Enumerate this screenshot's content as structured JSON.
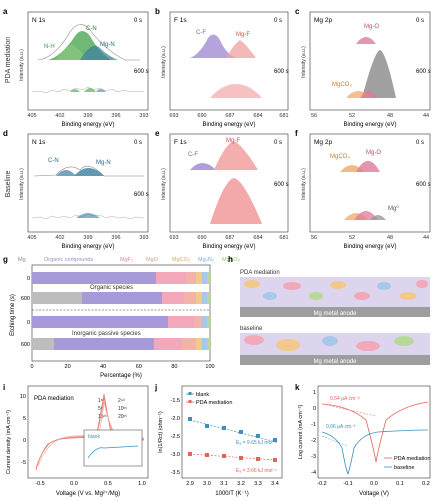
{
  "panel_letters": [
    "a",
    "b",
    "c",
    "d",
    "e",
    "f",
    "g",
    "h",
    "i",
    "j",
    "k"
  ],
  "row_labels": {
    "top": "PDA mediation",
    "middle": "Baseline"
  },
  "xps": {
    "xlabel": "Binding energy (eV)",
    "ylabel": "Intensity (a.u.)",
    "time_0": "0 s",
    "time_600": "600 s",
    "n1s": {
      "title": "N 1s",
      "ticks": [
        "405",
        "402",
        "399",
        "396",
        "393"
      ],
      "peaks_a": [
        "C-N",
        "N-H",
        "Mg-N"
      ],
      "peaks_d": [
        "C-N",
        "Mg-N"
      ]
    },
    "f1s": {
      "title": "F 1s",
      "ticks": [
        "693",
        "690",
        "687",
        "684",
        "681"
      ],
      "peaks": [
        "C-F",
        "Mg-F"
      ]
    },
    "mg2p": {
      "title": "Mg 2p",
      "ticks": [
        "56",
        "52",
        "48",
        "44"
      ],
      "peaks_c": [
        "Mg-O",
        "MgCO₃"
      ],
      "peaks_f": [
        "MgCO₃",
        "Mg-O",
        "Mg⁰"
      ]
    }
  },
  "g": {
    "legend": [
      "Mg",
      "Organic compounds",
      "MgF₂",
      "MgO",
      "MgCO₃",
      "Mg₃N₂",
      "MgSO₄"
    ],
    "legend_colors": [
      "#8a8a8a",
      "#a89ad8",
      "#f2a8b8",
      "#f0b4a8",
      "#f3c98a",
      "#a8c8ea",
      "#b8d898"
    ],
    "ylabel": "Etching time (s)",
    "xlabel": "Percentage (%)",
    "xticks": [
      "0",
      "20",
      "40",
      "60",
      "80",
      "100"
    ],
    "annotations": {
      "organic": "Organic species",
      "inorganic": "Inorganic passive species"
    },
    "ytick_0": "0",
    "ytick_600": "600"
  },
  "h": {
    "top_label": "PDA mediation",
    "bottom_label": "baseline",
    "anode": "Mg metal anode"
  },
  "i": {
    "xlabel": "Voltage (V vs. Mg²⁺/Mg)",
    "ylabel": "Current density (mA cm⁻²)",
    "label": "PDA mediation",
    "legend": [
      "1ˢᵗ",
      "2ⁿᵈ",
      "5ᵗʰ",
      "10ᵗʰ",
      "15ᵗʰ",
      "20ᵗʰ"
    ],
    "inset_label": "blank",
    "xticks": [
      "-0.5",
      "0.0",
      "0.5",
      "1.0"
    ],
    "yticks": [
      "10",
      "5",
      "0",
      "-5"
    ]
  },
  "j": {
    "xlabel": "1000/T (K⁻¹)",
    "ylabel": "ln(1/Rct) (ohm⁻¹)",
    "legend": [
      "blank",
      "PDA mediation"
    ],
    "ea_blank": "Eₐ = 9.65 kJ mol⁻¹",
    "ea_pda": "Eₐ = 3.66 kJ mol⁻¹",
    "xticks": [
      "2.9",
      "3.0",
      "3.1",
      "3.2",
      "3.3",
      "3.4"
    ],
    "yticks": [
      "-1.5",
      "-2.0",
      "-2.5",
      "-3.0",
      "-3.5"
    ]
  },
  "k": {
    "xlabel": "Voltage (V)",
    "ylabel": "Log current (mA cm⁻²)",
    "legend": [
      "PDA mediation",
      "baseline"
    ],
    "i0_pda": "0.54 μA cm⁻²",
    "i0_base": "0.06 μA cm⁻²",
    "xticks": [
      "-0.2",
      "-0.1",
      "0.0",
      "0.1",
      "0.2"
    ],
    "yticks": [
      "1",
      "0",
      "-1",
      "-2",
      "-3",
      "-4"
    ]
  },
  "colors": {
    "pda": "#e0665a",
    "blank": "#3d8fbf",
    "green": "#3fa047",
    "teal": "#3a7fa0",
    "pink": "#e07a9a",
    "purple": "#9b86cf",
    "red": "#e06b6b"
  }
}
